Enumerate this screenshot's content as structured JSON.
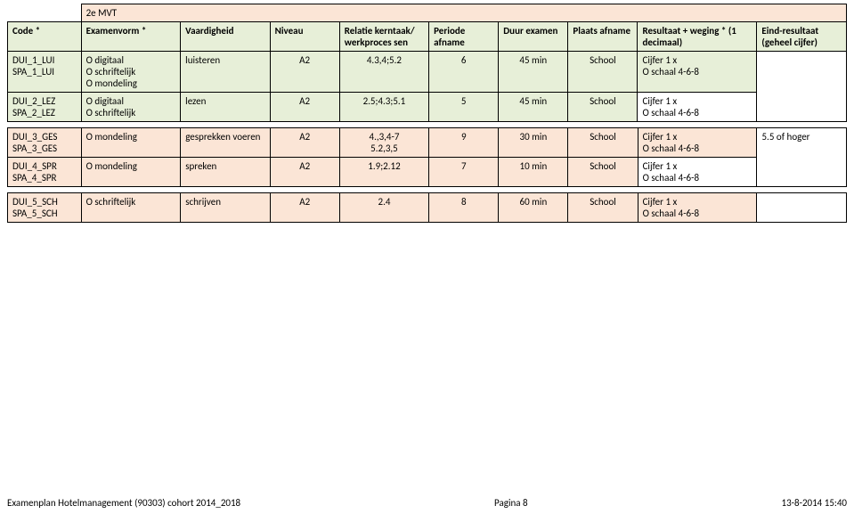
{
  "colors": {
    "green_bg": "#e7efd8",
    "orange_bg": "#fbe5d6",
    "border": "#000000",
    "text": "#000000",
    "page_bg": "#ffffff"
  },
  "section_title": "2e MVT",
  "headers": {
    "code": "Code *",
    "examenvorm": "Examenvorm *",
    "vaardigheid": "Vaardigheid",
    "niveau": "Niveau",
    "relatie": "Relatie kerntaak/ werkproces sen",
    "periode": "Periode afname",
    "duur": "Duur examen",
    "plaats": "Plaats afname",
    "resultaat": "Resultaat + weging * (1 decimaal)",
    "eind": "Eind-resultaat (geheel cijfer)"
  },
  "rows1": [
    {
      "code": "DUI_1_LUI\nSPA_1_LUI",
      "examen": "O digitaal\nO schriftelijk\nO mondeling",
      "vaard": "luisteren",
      "niveau": "A2",
      "relatie": "4.3,4;5.2",
      "periode": "6",
      "duur": "45 min",
      "plaats": "School",
      "result": "Cijfer 1 x\nO schaal 4-6-8"
    },
    {
      "code": "DUI_2_LEZ\nSPA_2_LEZ",
      "examen": "O digitaal\nO schriftelijk",
      "vaard": "lezen",
      "niveau": "A2",
      "relatie": "2.5;4.3;5.1",
      "periode": "5",
      "duur": "45 min",
      "plaats": "School",
      "result": "Cijfer 1 x\nO schaal 4-6-8"
    }
  ],
  "eind1": "",
  "rows2": [
    {
      "code": "DUI_3_GES\nSPA_3_GES",
      "examen": "O mondeling",
      "vaard": "gesprekken voeren",
      "niveau": "A2",
      "relatie": "4.,3,4-7\n5.2,3,5",
      "periode": "9",
      "duur": "30 min",
      "plaats": "School",
      "result": "Cijfer 1 x\nO schaal 4-6-8"
    },
    {
      "code": "DUI_4_SPR\nSPA_4_SPR",
      "examen": "O mondeling",
      "vaard": "spreken",
      "niveau": "A2",
      "relatie": "1.9;2.12",
      "periode": "7",
      "duur": "10 min",
      "plaats": "School",
      "result": "Cijfer 1 x\nO schaal 4-6-8"
    }
  ],
  "eind2": "5.5 of hoger",
  "rows3": [
    {
      "code": "DUI_5_SCH\nSPA_5_SCH",
      "examen": "O schriftelijk",
      "vaard": "schrijven",
      "niveau": "A2",
      "relatie": "2.4",
      "periode": "8",
      "duur": "60 min",
      "plaats": "School",
      "result": "Cijfer 1 x\nO schaal 4-6-8"
    }
  ],
  "eind3": "",
  "footer": {
    "left": "Examenplan Hotelmanagement (90303) cohort 2014_2018",
    "center": "Pagina 8",
    "right": "13-8-2014 15:40"
  }
}
